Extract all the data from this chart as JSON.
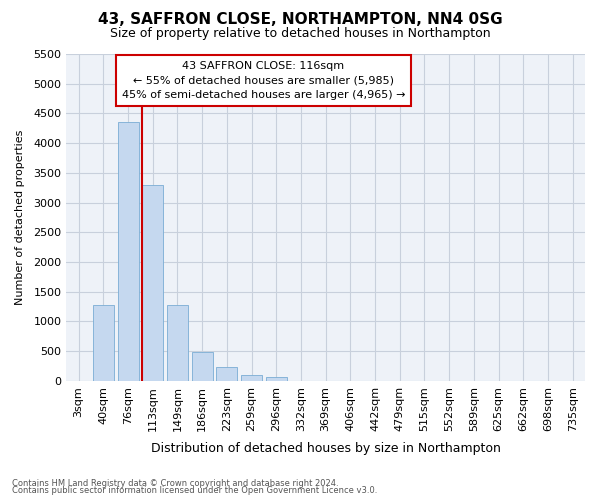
{
  "title": "43, SAFFRON CLOSE, NORTHAMPTON, NN4 0SG",
  "subtitle": "Size of property relative to detached houses in Northampton",
  "xlabel": "Distribution of detached houses by size in Northampton",
  "ylabel": "Number of detached properties",
  "footer_line1": "Contains HM Land Registry data © Crown copyright and database right 2024.",
  "footer_line2": "Contains public sector information licensed under the Open Government Licence v3.0.",
  "annotation_title": "43 SAFFRON CLOSE: 116sqm",
  "annotation_line1": "← 55% of detached houses are smaller (5,985)",
  "annotation_line2": "45% of semi-detached houses are larger (4,965) →",
  "categories": [
    "3sqm",
    "40sqm",
    "76sqm",
    "113sqm",
    "149sqm",
    "186sqm",
    "223sqm",
    "259sqm",
    "296sqm",
    "332sqm",
    "369sqm",
    "406sqm",
    "442sqm",
    "479sqm",
    "515sqm",
    "552sqm",
    "589sqm",
    "625sqm",
    "662sqm",
    "698sqm",
    "735sqm"
  ],
  "values": [
    0,
    1270,
    4350,
    3300,
    1280,
    480,
    230,
    100,
    60,
    0,
    0,
    0,
    0,
    0,
    0,
    0,
    0,
    0,
    0,
    0,
    0
  ],
  "bar_color": "#c5d8ef",
  "bar_edge_color": "#7aadd4",
  "vline_color": "#cc0000",
  "vline_x_index": 3,
  "ylim": [
    0,
    5500
  ],
  "yticks": [
    0,
    500,
    1000,
    1500,
    2000,
    2500,
    3000,
    3500,
    4000,
    4500,
    5000,
    5500
  ],
  "grid_color": "#c8d0dc",
  "chart_bg_color": "#eef2f8",
  "fig_bg_color": "#ffffff",
  "annotation_box_facecolor": "#ffffff",
  "annotation_box_edgecolor": "#cc0000"
}
